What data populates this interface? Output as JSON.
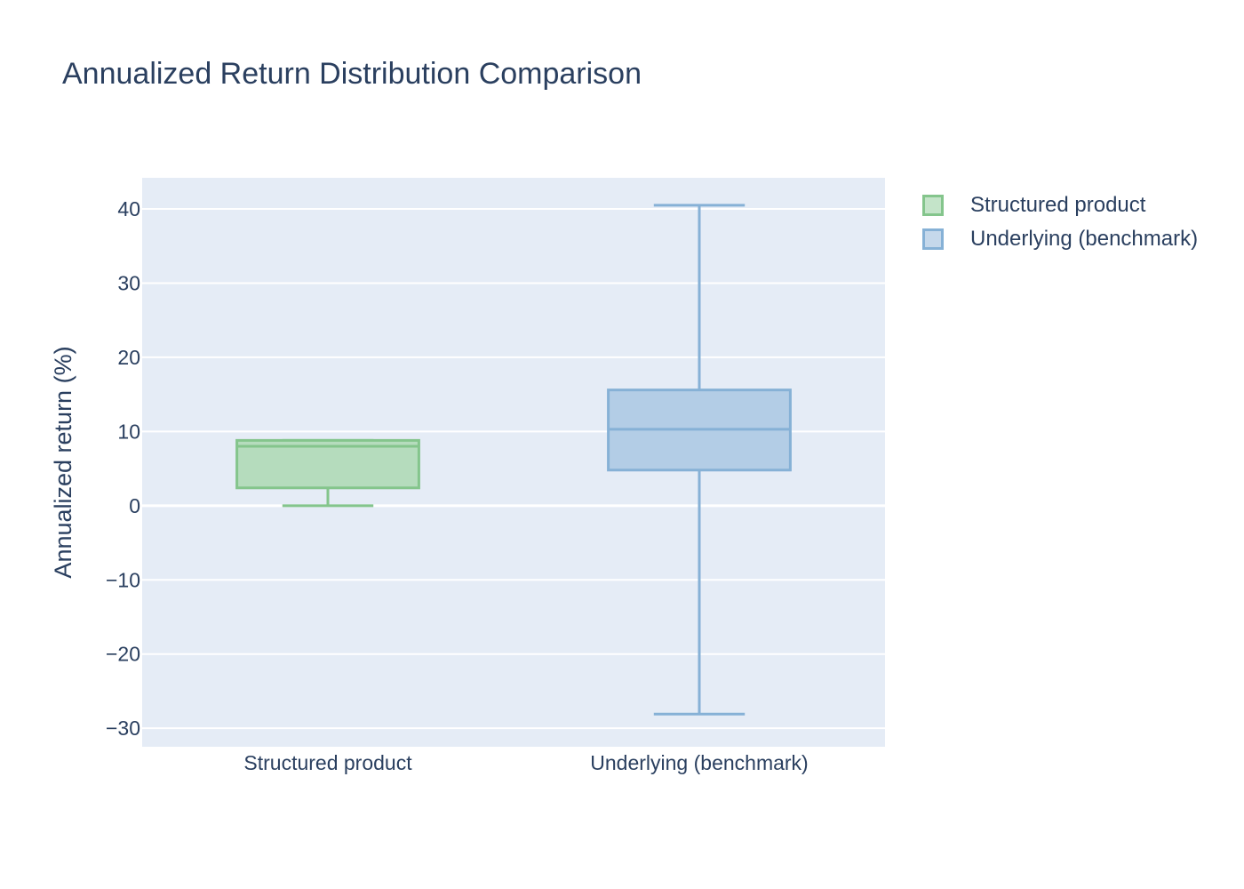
{
  "chart_data": {
    "type": "box",
    "title": "Annualized Return Distribution Comparison",
    "xlabel": "",
    "ylabel": "Annualized return (%)",
    "ylim": [
      -32.5,
      44.2
    ],
    "yticks": [
      40,
      30,
      20,
      10,
      0,
      -10,
      -20,
      -30
    ],
    "ytick_labels": [
      "40",
      "30",
      "20",
      "10",
      "0",
      "−10",
      "−20",
      "−30"
    ],
    "categories": [
      "Structured product",
      "Underlying (benchmark)"
    ],
    "grid": true,
    "legend_position": "top-right",
    "series": [
      {
        "name": "Structured product",
        "min": 0.0,
        "q1": 2.4,
        "median": 8.0,
        "q3": 8.8,
        "max": 8.8,
        "line_color": "#84c58c",
        "fill_color": "#b5dcbd"
      },
      {
        "name": "Underlying (benchmark)",
        "min": -28.1,
        "q1": 4.8,
        "median": 10.3,
        "q3": 15.6,
        "max": 40.5,
        "line_color": "#86b1d6",
        "fill_color": "#b3cde6"
      }
    ],
    "colors": {
      "plot_background": "#e5ecf6",
      "gridline": "#ffffff",
      "text": "#2a3f5f"
    }
  }
}
